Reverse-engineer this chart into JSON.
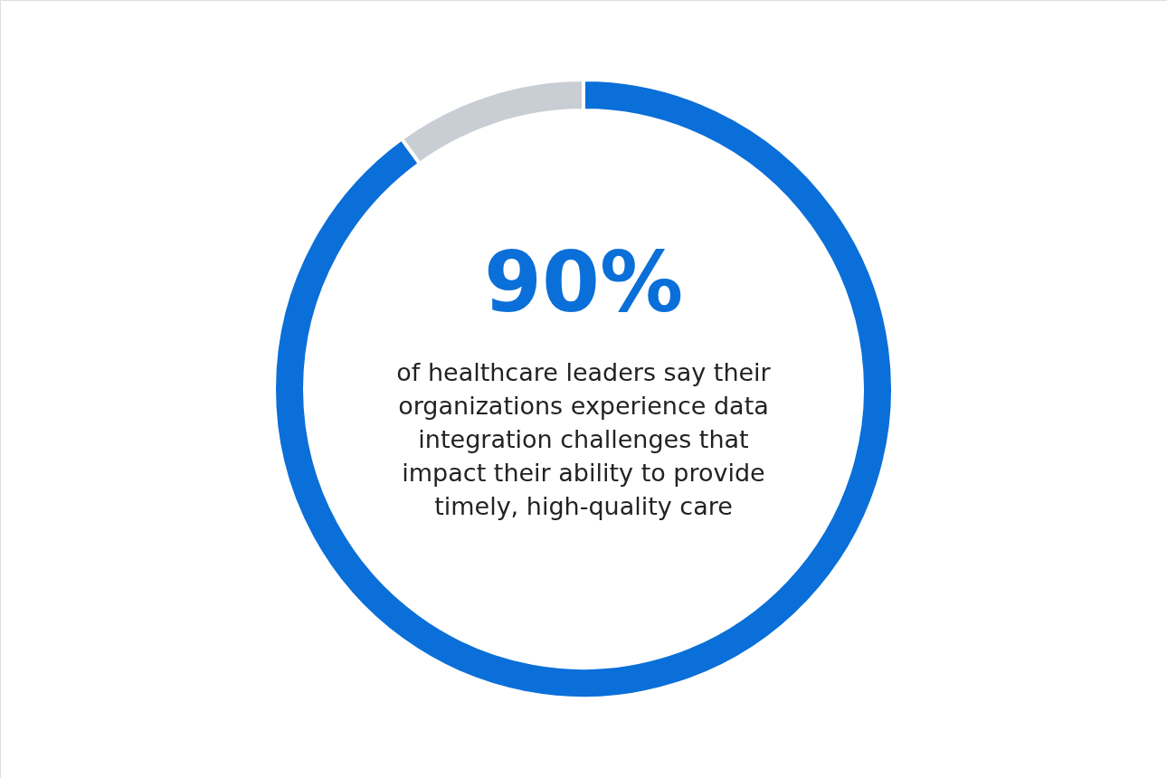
{
  "chart_data": {
    "type": "donut",
    "categories": [
      null,
      null
    ],
    "values": [
      90,
      10
    ],
    "colors": [
      "#0a6fd8",
      "#c9cdd4"
    ],
    "value_labels": [
      "90%",
      null
    ],
    "annotations": [
      "of healthcare leaders say their organizations experience data integration challenges that impact their ability to provide timely, high-quality care"
    ]
  }
}
